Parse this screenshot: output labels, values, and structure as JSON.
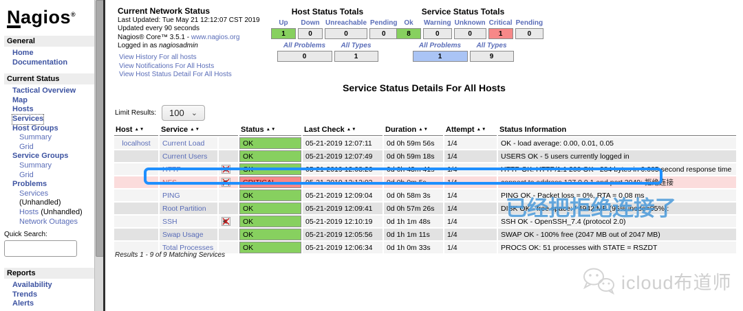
{
  "colors": {
    "ok_green": "#87d05f",
    "critical_bg": "#f78888",
    "critical_row": "#fbdcdc",
    "problems_blue": "#aac4f5",
    "link_blue": "#5a6db8",
    "sidebar_link": "#3d53a1",
    "annotation_blue": "#1e8fff",
    "watermark_blue": "#4a9ada"
  },
  "sidebar": {
    "logo_text": "agios",
    "logo_n": "N",
    "logo_mark": "®",
    "general_header": "General",
    "home": "Home",
    "documentation": "Documentation",
    "current_status_header": "Current Status",
    "tactical_overview": "Tactical Overview",
    "map": "Map",
    "hosts": "Hosts",
    "services": "Services",
    "host_groups": "Host Groups",
    "hg_summary": "Summary",
    "hg_grid": "Grid",
    "service_groups": "Service Groups",
    "sg_summary": "Summary",
    "sg_grid": "Grid",
    "problems": "Problems",
    "problems_services": "Services",
    "problems_services_suffix": "(Unhandled)",
    "problems_hosts": "Hosts",
    "problems_hosts_suffix": "(Unhandled)",
    "network_outages": "Network Outages",
    "quick_search_label": "Quick Search:",
    "reports_header": "Reports",
    "availability": "Availability",
    "trends": "Trends",
    "alerts": "Alerts"
  },
  "header": {
    "title": "Current Network Status",
    "last_updated": "Last Updated: Tue May 21 12:12:07 CST 2019",
    "update_interval": "Updated every 90 seconds",
    "version_prefix": "Nagios® Core™ 3.5.1 - ",
    "version_link": "www.nagios.org",
    "logged_in_prefix": "Logged in as ",
    "logged_in_user": "nagiosadmin",
    "links": [
      "View History For all hosts",
      "View Notifications For All Hosts",
      "View Host Status Detail For All Hosts"
    ]
  },
  "host_totals": {
    "title": "Host Status Totals",
    "columns": [
      "Up",
      "Down",
      "Unreachable",
      "Pending"
    ],
    "values": [
      "1",
      "0",
      "0",
      "0"
    ],
    "problems_label": "All Problems",
    "types_label": "All Types",
    "problems_value": "0",
    "types_value": "1"
  },
  "service_totals": {
    "title": "Service Status Totals",
    "columns": [
      "Ok",
      "Warning",
      "Unknown",
      "Critical",
      "Pending"
    ],
    "values": [
      "8",
      "0",
      "0",
      "1",
      "0"
    ],
    "problems_label": "All Problems",
    "types_label": "All Types",
    "problems_value": "1",
    "types_value": "9"
  },
  "main": {
    "title": "Service Status Details For All Hosts",
    "limit_label": "Limit Results:",
    "limit_value": "100",
    "results_text": "Results 1 - 9 of 9 Matching Services"
  },
  "table": {
    "headers": [
      "Host",
      "Service",
      "Status",
      "Last Check",
      "Duration",
      "Attempt",
      "Status Information"
    ],
    "rows": [
      {
        "host": "localhost",
        "service": "Current Load",
        "muted_icon": false,
        "status": "OK",
        "state": "ok",
        "last_check": "05-21-2019 12:07:11",
        "duration": "0d 0h 59m 56s",
        "attempt": "1/4",
        "info": "OK - load average: 0.00, 0.01, 0.05"
      },
      {
        "host": "",
        "service": "Current Users",
        "muted_icon": false,
        "status": "OK",
        "state": "ok",
        "last_check": "05-21-2019 12:07:49",
        "duration": "0d 0h 59m 18s",
        "attempt": "1/4",
        "info": "USERS OK - 5 users currently logged in"
      },
      {
        "host": "",
        "service": "HTTP",
        "muted_icon": true,
        "status": "OK",
        "state": "ok",
        "last_check": "05-21-2019 12:08:26",
        "duration": "0d 0h 43m 41s",
        "attempt": "1/4",
        "info": "HTTP OK: HTTP/1.1 200 OK - 284 bytes in 0.005 second response time"
      },
      {
        "host": "",
        "service": "NFS",
        "muted_icon": true,
        "status": "CRITICAL",
        "state": "critical",
        "last_check": "05-21-2019 12:12:02",
        "duration": "0d 0h 0m 5s",
        "attempt": "1/4",
        "info": "connect to address 127.0.0.1 and port 2049: 拒绝连接"
      },
      {
        "host": "",
        "service": "PING",
        "muted_icon": false,
        "status": "OK",
        "state": "ok",
        "last_check": "05-21-2019 12:09:04",
        "duration": "0d 0h 58m 3s",
        "attempt": "1/4",
        "info": "PING OK - Packet loss = 0%, RTA = 0.08 ms"
      },
      {
        "host": "",
        "service": "Root Partition",
        "muted_icon": false,
        "status": "OK",
        "state": "ok",
        "last_check": "05-21-2019 12:09:41",
        "duration": "0d 0h 57m 26s",
        "attempt": "1/4",
        "info": "DISK OK - free space: / 4942 MB (95% inode=95%):"
      },
      {
        "host": "",
        "service": "SSH",
        "muted_icon": true,
        "status": "OK",
        "state": "ok",
        "last_check": "05-21-2019 12:10:19",
        "duration": "0d 1h 1m 48s",
        "attempt": "1/4",
        "info": "SSH OK - OpenSSH_7.4 (protocol 2.0)"
      },
      {
        "host": "",
        "service": "Swap Usage",
        "muted_icon": false,
        "status": "OK",
        "state": "ok",
        "last_check": "05-21-2019 12:05:56",
        "duration": "0d 1h 1m 11s",
        "attempt": "1/4",
        "info": "SWAP OK - 100% free (2047 MB out of 2047 MB)"
      },
      {
        "host": "",
        "service": "Total Processes",
        "muted_icon": false,
        "status": "OK",
        "state": "ok",
        "last_check": "05-21-2019 12:06:34",
        "duration": "0d 1h 0m 33s",
        "attempt": "1/4",
        "info": "PROCS OK: 51 processes with STATE = RSZDT"
      }
    ]
  },
  "watermarks": {
    "overlay_text": "已经把拒绝连接了",
    "brand_text": "icloud布道师"
  }
}
